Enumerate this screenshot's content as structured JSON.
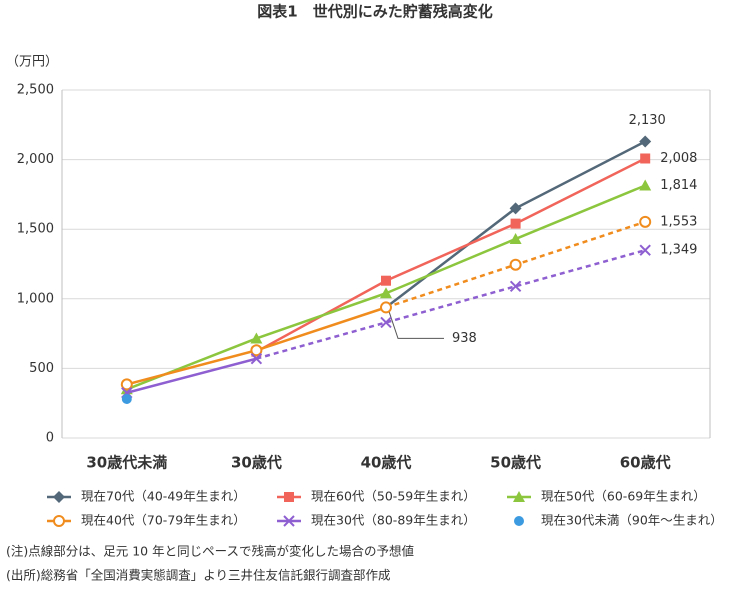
{
  "chart_data": {
    "type": "line",
    "title": "図表1　世代別にみた貯蓄残高変化",
    "y_label": "（万円）",
    "categories": [
      "30歳代未満",
      "30歳代",
      "40歳代",
      "50歳代",
      "60歳代"
    ],
    "ylim": [
      0,
      2500
    ],
    "yticks": [
      0,
      500,
      {
        "value": 1000,
        "label": "1,000"
      },
      {
        "value": 1500,
        "label": "1,500"
      },
      {
        "value": 2000,
        "label": "2,000"
      },
      {
        "value": 2500,
        "label": "2,500"
      }
    ],
    "grid": true,
    "series": [
      {
        "name": "現在70代（40-49年生まれ）",
        "color": "#536878",
        "marker": "diamond",
        "values": [
          null,
          null,
          938,
          1650,
          2130
        ],
        "value_labels": [
          null,
          null,
          "938",
          null,
          "2,130"
        ]
      },
      {
        "name": "現在60代（50-59年生まれ）",
        "color": "#f0645a",
        "marker": "square",
        "values": [
          null,
          620,
          1130,
          1540,
          2008
        ],
        "value_labels": [
          null,
          null,
          null,
          null,
          "2,008"
        ]
      },
      {
        "name": "現在50代（60-69年生まれ）",
        "color": "#8cc63e",
        "marker": "triangle",
        "values": [
          350,
          715,
          1040,
          1430,
          1814
        ],
        "value_labels": [
          null,
          null,
          null,
          null,
          "1,814"
        ]
      },
      {
        "name": "現在40代（70-79年生まれ）",
        "color": "#f08c1e",
        "marker": "circle-open",
        "dashed_from": 2,
        "values": [
          385,
          630,
          938,
          1245,
          1553
        ],
        "value_labels": [
          null,
          null,
          null,
          null,
          "1,553"
        ]
      },
      {
        "name": "現在30代（80-89年生まれ）",
        "color": "#8e5fd0",
        "marker": "x",
        "dashed_from": 1,
        "values": [
          325,
          570,
          830,
          1090,
          1349
        ],
        "value_labels": [
          null,
          null,
          null,
          null,
          "1,349"
        ]
      },
      {
        "name": "現在30代未満（90年～生まれ）",
        "color": "#3c9be0",
        "marker": "circle",
        "values": [
          280,
          null,
          null,
          null,
          null
        ]
      }
    ],
    "notes": [
      "(注)点線部分は、足元 10 年と同じペースで残高が変化した場合の予想値",
      "(出所)総務省「全国消費実態調査」より三井住友信託銀行調査部作成"
    ]
  }
}
